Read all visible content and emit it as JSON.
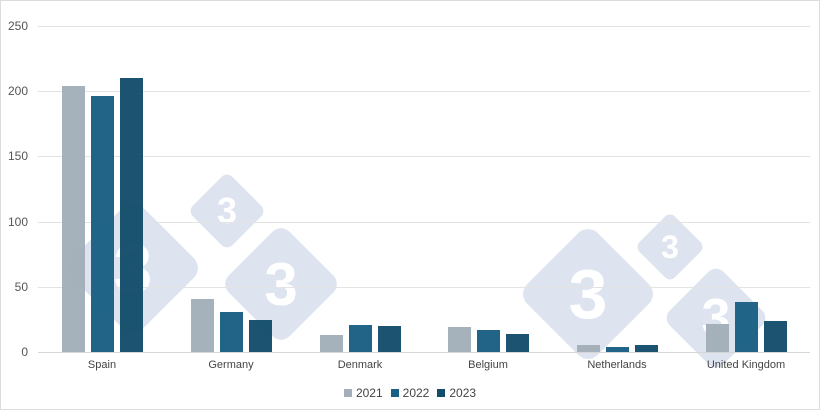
{
  "chart_data": {
    "type": "bar",
    "title": "",
    "xlabel": "",
    "ylabel": "",
    "ylim": [
      0,
      250
    ],
    "yticks": [
      0,
      50,
      100,
      150,
      200,
      250
    ],
    "grid": true,
    "legend_position": "bottom",
    "categories": [
      "Spain",
      "Germany",
      "Denmark",
      "Belgium",
      "Netherlands",
      "United Kingdom"
    ],
    "series": [
      {
        "name": "2021",
        "color": "#a2aeb9",
        "values": [
          204,
          40.5,
          13,
          19,
          5,
          21.7
        ]
      },
      {
        "name": "2022",
        "color": "#1a5f84",
        "values": [
          196.5,
          31,
          20.5,
          16.5,
          4,
          38.5
        ]
      },
      {
        "name": "2023",
        "color": "#144d6b",
        "values": [
          210,
          24.5,
          20,
          13.5,
          5,
          23.5
        ]
      }
    ]
  },
  "axis": {
    "y_labels": [
      "0",
      "50",
      "100",
      "150",
      "200",
      "250"
    ]
  },
  "legend": {
    "items": [
      {
        "label": "2021",
        "color": "#a2aeb9"
      },
      {
        "label": "2022",
        "color": "#1a5f84"
      },
      {
        "label": "2023",
        "color": "#144d6b"
      }
    ]
  },
  "watermark": {
    "glyph": "3"
  }
}
